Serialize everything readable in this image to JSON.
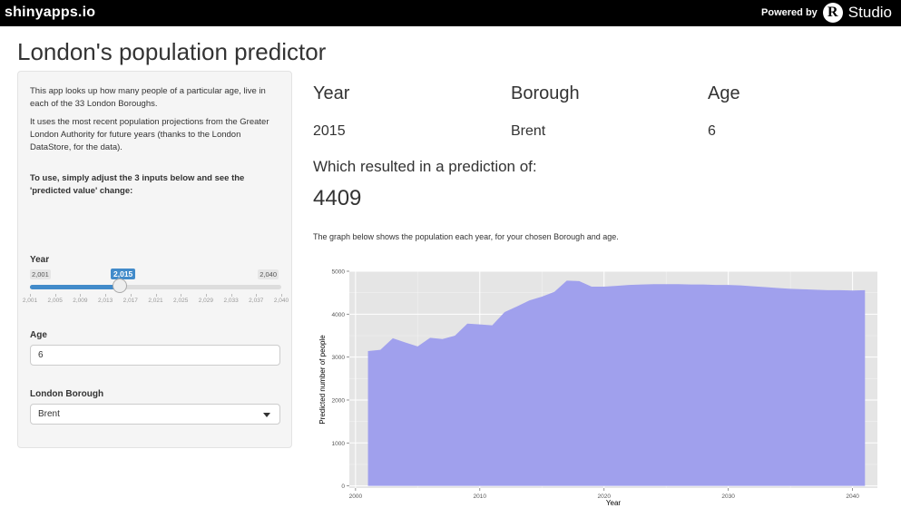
{
  "topbar": {
    "brand": "shinyapps.io",
    "powered_by": "Powered by",
    "r_logo": "R",
    "studio": "Studio"
  },
  "title": "London's population predictor",
  "sidebar": {
    "intro1": "This app looks up how many people of a particular age, live in each of the 33 London Boroughs.",
    "intro2": "It uses the most recent population projections from the Greater London Authority for future years (thanks to the London DataStore, for the data).",
    "instructions": "To use, simply adjust the 3 inputs below and see the 'predicted value' change:",
    "year_label": "Year",
    "year_min": "2,001",
    "year_max": "2,040",
    "year_value": "2,015",
    "year_fraction": 0.359,
    "year_ticks": [
      "2,001",
      "2,005",
      "2,009",
      "2,013",
      "2,017",
      "2,021",
      "2,025",
      "2,029",
      "2,033",
      "2,037",
      "2,040"
    ],
    "age_label": "Age",
    "age_value": "6",
    "borough_label": "London Borough",
    "borough_value": "Brent"
  },
  "main": {
    "col_year": "Year",
    "col_borough": "Borough",
    "col_age": "Age",
    "val_year": "2015",
    "val_borough": "Brent",
    "val_age": "6",
    "prediction_label": "Which resulted in a prediction of:",
    "prediction_value": "4409",
    "graph_desc": "The graph below shows the population each year, for your chosen Borough and age."
  },
  "chart_data": {
    "type": "area",
    "xlabel": "Year",
    "ylabel": "Predicted number of people",
    "xlim": [
      1999.5,
      2042
    ],
    "ylim": [
      -50,
      5000
    ],
    "x_ticks": [
      2000,
      2010,
      2020,
      2030,
      2040
    ],
    "y_ticks": [
      0,
      1000,
      2000,
      3000,
      4000,
      5000
    ],
    "fill_color": "#a0a0ed",
    "panel_color": "#e5e5e5",
    "grid": true,
    "x": [
      2001,
      2002,
      2003,
      2004,
      2005,
      2006,
      2007,
      2008,
      2009,
      2010,
      2011,
      2012,
      2013,
      2014,
      2015,
      2016,
      2017,
      2018,
      2019,
      2020,
      2021,
      2022,
      2023,
      2024,
      2025,
      2026,
      2027,
      2028,
      2029,
      2030,
      2031,
      2032,
      2033,
      2034,
      2035,
      2036,
      2037,
      2038,
      2039,
      2040,
      2041
    ],
    "values": [
      3140,
      3170,
      3440,
      3340,
      3250,
      3450,
      3420,
      3500,
      3780,
      3760,
      3740,
      4050,
      4180,
      4320,
      4409,
      4520,
      4780,
      4770,
      4640,
      4640,
      4660,
      4680,
      4690,
      4700,
      4700,
      4700,
      4690,
      4690,
      4680,
      4680,
      4670,
      4650,
      4630,
      4610,
      4590,
      4580,
      4570,
      4560,
      4560,
      4550,
      4560
    ]
  }
}
